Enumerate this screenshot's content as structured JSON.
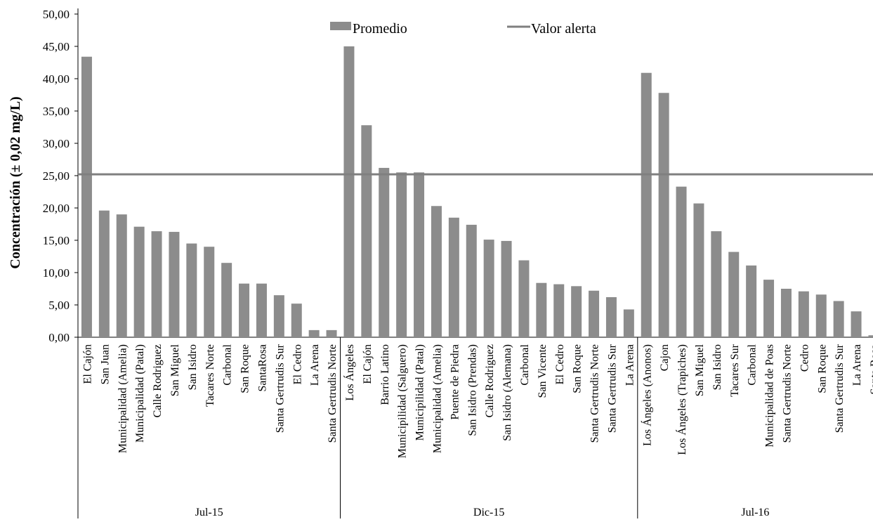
{
  "chart_data": {
    "type": "bar",
    "title": "",
    "ylabel": "Concentración (± 0,02 mg/L)",
    "xlabel": "",
    "ylim": [
      0,
      50
    ],
    "yticks": [
      "0,00",
      "5,00",
      "10,00",
      "15,00",
      "20,00",
      "25,00",
      "30,00",
      "35,00",
      "40,00",
      "45,00",
      "50,00"
    ],
    "grid": false,
    "legend_position": "top",
    "bar_color": "#8c8c8c",
    "line_color": "#7f7f7f",
    "series": [
      {
        "name": "Promedio",
        "kind": "bar"
      },
      {
        "name": "Valor alerta",
        "kind": "line",
        "value": 25.2
      }
    ],
    "groups": [
      {
        "label": "Jul-15",
        "categories": [
          "El Cajón",
          "San Juan",
          "Municipalidad (Amelia)",
          "Municipalidad (Patal)",
          "Calle Rodriguez",
          "San Miguel",
          "San Isidro",
          "Tacares Norte",
          "Carbonal",
          "San Roque",
          "SantaRosa",
          "Santa Gertrudis Sur",
          "El Cedro",
          "La Arena",
          "Santa Gertrudis Norte"
        ],
        "values": [
          43.4,
          19.6,
          19.0,
          17.1,
          16.4,
          16.3,
          14.5,
          14.0,
          11.5,
          8.3,
          8.3,
          6.5,
          5.2,
          1.1,
          1.1
        ]
      },
      {
        "label": "Dic-15",
        "categories": [
          "Los Ángeles",
          "El Cajón",
          "Barrio Latino",
          "Municipilidad (Salguero)",
          "Municipilidad (Patal)",
          "Municipalidad (Amelia)",
          "Puente de Piedra",
          "San Isidro (Prendas)",
          "Calle Rodriguez",
          "San Isidro (Alemana)",
          "Carbonal",
          "San Vicente",
          "El Cedro",
          "San Roque",
          "Santa Gertrudis Norte",
          "Santa Gertrudis Sur",
          "La Arena"
        ],
        "values": [
          45.0,
          32.8,
          26.2,
          25.5,
          25.5,
          20.3,
          18.5,
          17.4,
          15.1,
          14.9,
          11.9,
          8.4,
          8.2,
          7.9,
          7.2,
          6.2,
          4.3
        ]
      },
      {
        "label": "Jul-16",
        "categories": [
          "Los Ángeles (Anonos)",
          "Cajon",
          "Los Ángeles (Trapiches)",
          "San Miguel",
          "San Isidro",
          "Tacares Sur",
          "Carbonal",
          "Municipalidad de Poas",
          "Santa Gertrudis Norte",
          "Cedro",
          "San Roque",
          "Santa Gertrudis Sur",
          "La Arena",
          "Santa Rosa"
        ],
        "values": [
          40.9,
          37.8,
          23.3,
          20.7,
          16.4,
          13.2,
          11.1,
          8.9,
          7.5,
          7.1,
          6.6,
          5.6,
          4.0,
          0.3
        ]
      }
    ]
  }
}
